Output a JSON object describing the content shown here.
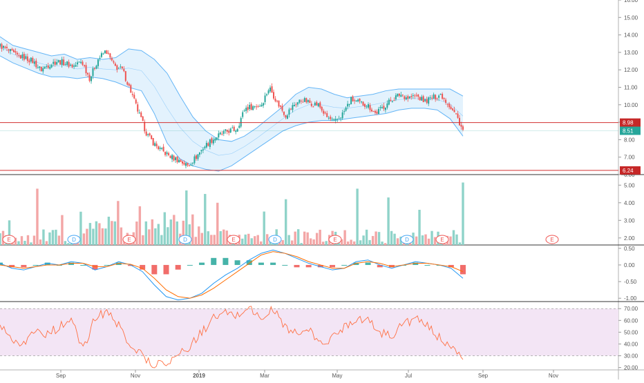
{
  "colors": {
    "up": "#26a69a",
    "down": "#ef5350",
    "vol_up": "#8fd3c9",
    "vol_down": "#f3a6a6",
    "bb_line": "#64b5f6",
    "bb_fill": "#e3f2fd",
    "level_line": "#d32f2f",
    "level_tag": "#c62828",
    "last_tag": "#26a69a",
    "macd_line": "#2196f3",
    "signal_line": "#ff6d00",
    "rsi_line": "#ff7043",
    "rsi_band": "#f3e5f5",
    "axis_text": "#555555",
    "pane_border": "#555555",
    "event_marker": "#ef5350",
    "dividend_marker": "#42a5f5"
  },
  "chart_data": {
    "type": "line",
    "x_axis": {
      "ticks": [
        "Sep",
        "Nov",
        "2019",
        "Mar",
        "May",
        "Jul",
        "Sep",
        "Nov"
      ]
    },
    "price_pane": {
      "y_ticks": [
        "16.00",
        "15.00",
        "14.00",
        "13.00",
        "12.00",
        "11.00",
        "10.00",
        "9.00",
        "8.00",
        "7.00",
        "6.00"
      ],
      "ylim": [
        6,
        16
      ],
      "close_points": [
        [
          "2018-07-20",
          13.4
        ],
        [
          "2018-07-27",
          13.1
        ],
        [
          "2018-08-03",
          12.8
        ],
        [
          "2018-08-10",
          12.7
        ],
        [
          "2018-08-17",
          12.5
        ],
        [
          "2018-08-24",
          12.0
        ],
        [
          "2018-08-31",
          12.3
        ],
        [
          "2018-09-07",
          12.5
        ],
        [
          "2018-09-14",
          12.4
        ],
        [
          "2018-09-21",
          12.2
        ],
        [
          "2018-09-28",
          12.5
        ],
        [
          "2018-10-05",
          11.5
        ],
        [
          "2018-10-12",
          12.6
        ],
        [
          "2018-10-19",
          13.1
        ],
        [
          "2018-10-26",
          12.2
        ],
        [
          "2018-11-02",
          12.0
        ],
        [
          "2018-11-09",
          10.8
        ],
        [
          "2018-11-16",
          9.5
        ],
        [
          "2018-11-23",
          8.3
        ],
        [
          "2018-11-30",
          7.7
        ],
        [
          "2018-12-07",
          7.3
        ],
        [
          "2018-12-14",
          7.0
        ],
        [
          "2018-12-21",
          6.8
        ],
        [
          "2018-12-28",
          6.5
        ],
        [
          "2019-01-04",
          7.0
        ],
        [
          "2019-01-11",
          7.6
        ],
        [
          "2019-01-18",
          8.0
        ],
        [
          "2019-01-25",
          8.3
        ],
        [
          "2019-02-01",
          8.5
        ],
        [
          "2019-02-08",
          8.6
        ],
        [
          "2019-02-15",
          9.8
        ],
        [
          "2019-02-22",
          9.9
        ],
        [
          "2019-03-01",
          10.0
        ],
        [
          "2019-03-08",
          11.0
        ],
        [
          "2019-03-15",
          10.1
        ],
        [
          "2019-03-22",
          9.4
        ],
        [
          "2019-03-29",
          10.0
        ],
        [
          "2019-04-05",
          10.3
        ],
        [
          "2019-04-12",
          10.1
        ],
        [
          "2019-04-19",
          10.0
        ],
        [
          "2019-04-26",
          9.3
        ],
        [
          "2019-05-03",
          9.0
        ],
        [
          "2019-05-10",
          9.5
        ],
        [
          "2019-05-17",
          10.3
        ],
        [
          "2019-05-24",
          10.1
        ],
        [
          "2019-05-31",
          10.0
        ],
        [
          "2019-06-07",
          9.5
        ],
        [
          "2019-06-14",
          9.9
        ],
        [
          "2019-06-21",
          10.3
        ],
        [
          "2019-06-28",
          10.6
        ],
        [
          "2019-07-05",
          10.4
        ],
        [
          "2019-07-12",
          10.5
        ],
        [
          "2019-07-19",
          10.2
        ],
        [
          "2019-07-26",
          10.4
        ],
        [
          "2019-08-02",
          10.6
        ],
        [
          "2019-08-09",
          10.0
        ],
        [
          "2019-08-16",
          9.3
        ],
        [
          "2019-08-21",
          8.51
        ]
      ],
      "bollinger": {
        "upper": [
          13.9,
          13.4,
          13.2,
          13.0,
          12.8,
          12.9,
          12.6,
          12.7,
          12.6,
          12.7,
          13.2,
          13.1,
          12.6,
          11.8,
          10.5,
          9.3,
          8.5,
          8.0,
          7.9,
          8.2,
          8.7,
          9.3,
          9.9,
          10.6,
          11.0,
          10.9,
          10.6,
          10.4,
          10.5,
          10.6,
          10.8,
          10.9,
          10.9,
          10.9,
          10.9,
          10.9,
          10.5
        ],
        "lower": [
          12.8,
          12.4,
          12.1,
          11.8,
          11.6,
          11.6,
          11.5,
          11.6,
          11.5,
          11.3,
          11.0,
          10.8,
          9.5,
          7.8,
          6.9,
          6.5,
          6.3,
          6.2,
          6.5,
          7.0,
          7.5,
          8.0,
          8.5,
          8.8,
          9.0,
          9.1,
          9.1,
          9.2,
          9.3,
          9.4,
          9.5,
          9.7,
          9.8,
          9.8,
          9.7,
          9.2,
          8.2
        ]
      },
      "levels": [
        {
          "label": "8.98",
          "value": 8.98
        },
        {
          "label": "6.24",
          "value": 6.24
        }
      ],
      "last_price": {
        "label": "8.51",
        "value": 8.51
      }
    },
    "volume_pane": {
      "y_ticks": [
        "5.00",
        "4.00",
        "3.00",
        "2.00"
      ],
      "ylim": [
        1.6,
        5.6
      ],
      "markers": [
        {
          "label": "E",
          "kind": "earnings"
        },
        {
          "label": "D",
          "kind": "dividend"
        },
        {
          "label": "E",
          "kind": "earnings"
        },
        {
          "label": "D",
          "kind": "dividend"
        },
        {
          "label": "E",
          "kind": "earnings"
        },
        {
          "label": "D",
          "kind": "dividend"
        },
        {
          "label": "E",
          "kind": "earnings"
        },
        {
          "label": "D",
          "kind": "dividend"
        },
        {
          "label": "E",
          "kind": "earnings"
        },
        {
          "label": "E",
          "kind": "earnings"
        }
      ]
    },
    "macd_pane": {
      "y_ticks": [
        "0.50",
        "0.00",
        "-0.50",
        "-1.00"
      ],
      "ylim": [
        -1.1,
        0.6
      ],
      "macd": [
        0.05,
        -0.1,
        -0.15,
        -0.05,
        0.05,
        0.0,
        0.1,
        0.05,
        -0.15,
        -0.05,
        0.1,
        0.0,
        -0.2,
        -0.6,
        -0.95,
        -1.05,
        -1.0,
        -0.85,
        -0.55,
        -0.3,
        -0.1,
        0.15,
        0.35,
        0.45,
        0.35,
        0.2,
        0.05,
        -0.05,
        -0.15,
        -0.1,
        0.1,
        0.15,
        0.0,
        -0.1,
        0.0,
        0.1,
        0.05,
        0.0,
        -0.1,
        -0.4
      ],
      "signal": [
        0.0,
        -0.05,
        -0.1,
        -0.05,
        0.0,
        0.0,
        0.05,
        0.05,
        -0.05,
        -0.05,
        0.05,
        0.02,
        -0.1,
        -0.4,
        -0.75,
        -0.95,
        -1.0,
        -0.9,
        -0.7,
        -0.45,
        -0.2,
        0.05,
        0.3,
        0.4,
        0.35,
        0.25,
        0.1,
        0.0,
        -0.1,
        -0.1,
        0.05,
        0.1,
        0.05,
        -0.05,
        0.0,
        0.05,
        0.05,
        0.0,
        -0.05,
        -0.2
      ]
    },
    "rsi_pane": {
      "y_ticks": [
        "70.00",
        "60.00",
        "50.00",
        "40.00",
        "30.00",
        "20.00"
      ],
      "ylim": [
        18,
        76
      ],
      "band": [
        30,
        70
      ],
      "values": [
        58,
        45,
        40,
        52,
        48,
        55,
        60,
        35,
        62,
        68,
        55,
        40,
        30,
        22,
        25,
        30,
        38,
        50,
        62,
        66,
        64,
        72,
        60,
        70,
        55,
        48,
        52,
        40,
        45,
        55,
        62,
        60,
        50,
        47,
        58,
        61,
        55,
        45,
        40,
        25
      ]
    }
  }
}
